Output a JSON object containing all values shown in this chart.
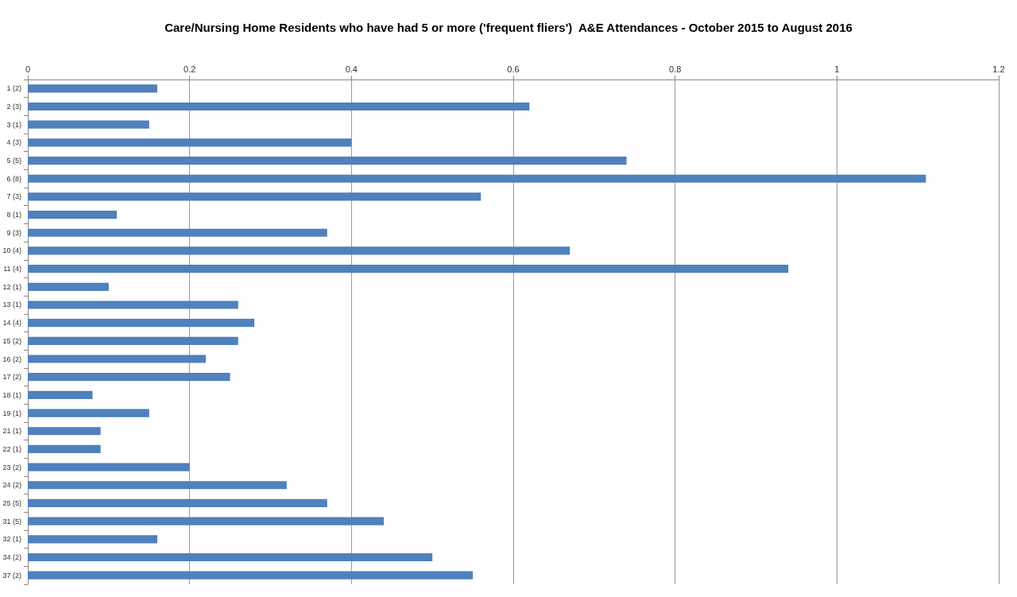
{
  "chart_data": {
    "type": "bar",
    "orientation": "horizontal",
    "title": "Care/Nursing Home Residents who have had 5 or more ('frequent fliers')  A&E Attendances - October 2015 to August 2016",
    "categories": [
      "1 (2)",
      "2 (3)",
      "3 (1)",
      "4 (3)",
      "5 (5)",
      "6 (8)",
      "7 (3)",
      "8 (1)",
      "9 (3)",
      "10 (4)",
      "11 (4)",
      "12 (1)",
      "13 (1)",
      "14 (4)",
      "15 (2)",
      "16 (2)",
      "17 (2)",
      "18 (1)",
      "19 (1)",
      "21 (1)",
      "22 (1)",
      "23 (2)",
      "24 (2)",
      "25 (5)",
      "31 (5)",
      "32 (1)",
      "34 (2)",
      "37 (2)"
    ],
    "values": [
      0.16,
      0.62,
      0.15,
      0.4,
      0.74,
      1.11,
      0.56,
      0.11,
      0.37,
      0.67,
      0.94,
      0.1,
      0.26,
      0.28,
      0.26,
      0.22,
      0.25,
      0.08,
      0.15,
      0.09,
      0.09,
      0.2,
      0.32,
      0.37,
      0.44,
      0.16,
      0.5,
      0.55
    ],
    "color": "#4f81bd",
    "xlim": [
      0,
      1.2
    ],
    "xticks": [
      0,
      0.2,
      0.4,
      0.6,
      0.8,
      1,
      1.2
    ],
    "grid": "x"
  }
}
